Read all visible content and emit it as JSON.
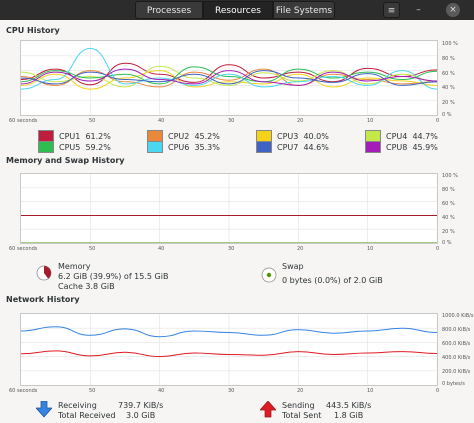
{
  "tabs": [
    {
      "label": "Processes"
    },
    {
      "label": "Resources"
    },
    {
      "label": "File Systems"
    }
  ],
  "header": {
    "menu_glyph": "≡",
    "minimize_glyph": "–",
    "close_glyph": "×"
  },
  "cpu": {
    "title": "CPU History",
    "x_ticks": [
      "60 seconds",
      "50",
      "40",
      "30",
      "20",
      "10",
      "0"
    ],
    "y_ticks": [
      "100 %",
      "80 %",
      "60 %",
      "40 %",
      "20 %",
      "0 %"
    ],
    "cpus": [
      {
        "label": "CPU1",
        "value": "61.2%",
        "color": "#c01c3b"
      },
      {
        "label": "CPU2",
        "value": "45.2%",
        "color": "#e8883a"
      },
      {
        "label": "CPU3",
        "value": "40.0%",
        "color": "#f5d21a"
      },
      {
        "label": "CPU4",
        "value": "44.7%",
        "color": "#c3e84a"
      },
      {
        "label": "CPU5",
        "value": "59.2%",
        "color": "#2ebd4f"
      },
      {
        "label": "CPU6",
        "value": "35.3%",
        "color": "#4ad7f0"
      },
      {
        "label": "CPU7",
        "value": "44.6%",
        "color": "#3f63c4"
      },
      {
        "label": "CPU8",
        "value": "45.9%",
        "color": "#a51db9"
      }
    ]
  },
  "memory": {
    "title": "Memory and Swap History",
    "x_ticks": [
      "60 seconds",
      "50",
      "40",
      "30",
      "20",
      "10",
      "0"
    ],
    "y_ticks": [
      "100 %",
      "80 %",
      "60 %",
      "40 %",
      "20 %",
      "0 %"
    ],
    "memory_label": "Memory",
    "memory_value": "6.2 GiB (39.9%) of 15.5 GiB",
    "cache_value": "Cache 3.8 GiB",
    "memory_fraction": 0.399,
    "memory_color": "#a51d2d",
    "swap_label": "Swap",
    "swap_value": "0 bytes (0.0%) of 2.0 GiB",
    "swap_fraction": 0.0,
    "swap_color": "#4e9a06"
  },
  "network": {
    "title": "Network History",
    "x_ticks": [
      "60 seconds",
      "50",
      "40",
      "30",
      "20",
      "10",
      "0"
    ],
    "y_ticks": [
      "1000.0 KiB/s",
      "800.0 KiB/s",
      "600.0 KiB/s",
      "400.0 KiB/s",
      "200.0 KiB/s",
      "0 bytes/s"
    ],
    "receiving_label": "Receiving",
    "receiving_value": "739.7 KiB/s",
    "total_received_label": "Total Received",
    "total_received_value": "3.0 GiB",
    "sending_label": "Sending",
    "sending_value": "443.5 KiB/s",
    "total_sent_label": "Total Sent",
    "total_sent_value": "1.8 GiB",
    "receiving_color": "#3584e4",
    "sending_color": "#e01b24"
  },
  "chart_data": [
    {
      "type": "line",
      "ylim": [
        0,
        100
      ],
      "x": [
        60,
        55,
        50,
        45,
        40,
        35,
        30,
        25,
        20,
        15,
        10,
        5,
        0
      ],
      "series": [
        {
          "name": "CPU1",
          "values": [
            48,
            62,
            41,
            70,
            55,
            44,
            68,
            50,
            58,
            45,
            63,
            52,
            61
          ]
        },
        {
          "name": "CPU2",
          "values": [
            52,
            40,
            60,
            45,
            38,
            58,
            47,
            62,
            40,
            55,
            48,
            42,
            45
          ]
        },
        {
          "name": "CPU3",
          "values": [
            40,
            55,
            35,
            50,
            60,
            38,
            45,
            42,
            55,
            38,
            50,
            46,
            40
          ]
        },
        {
          "name": "CPU4",
          "values": [
            58,
            45,
            52,
            38,
            66,
            50,
            40,
            57,
            46,
            60,
            42,
            55,
            45
          ]
        },
        {
          "name": "CPU5",
          "values": [
            45,
            60,
            50,
            55,
            42,
            65,
            52,
            45,
            62,
            50,
            58,
            48,
            59
          ]
        },
        {
          "name": "CPU6",
          "values": [
            35,
            48,
            90,
            42,
            50,
            40,
            55,
            38,
            45,
            52,
            40,
            60,
            35
          ]
        },
        {
          "name": "CPU7",
          "values": [
            50,
            42,
            58,
            48,
            45,
            55,
            42,
            60,
            50,
            44,
            56,
            40,
            45
          ]
        },
        {
          "name": "CPU8",
          "values": [
            42,
            58,
            46,
            62,
            48,
            42,
            60,
            45,
            40,
            58,
            46,
            52,
            46
          ]
        }
      ]
    },
    {
      "type": "line",
      "ylim": [
        0,
        100
      ],
      "x": [
        60,
        0
      ],
      "series": [
        {
          "name": "Memory",
          "values": [
            39.9,
            39.9
          ]
        },
        {
          "name": "Swap",
          "values": [
            0,
            0
          ]
        }
      ]
    },
    {
      "type": "line",
      "ylim": [
        0,
        1000
      ],
      "x": [
        60,
        55,
        50,
        45,
        40,
        35,
        30,
        25,
        20,
        15,
        10,
        5,
        0
      ],
      "series": [
        {
          "name": "Receiving",
          "values": [
            760,
            820,
            700,
            790,
            680,
            760,
            740,
            700,
            780,
            730,
            760,
            800,
            740
          ]
        },
        {
          "name": "Sending",
          "values": [
            440,
            480,
            410,
            460,
            400,
            450,
            430,
            420,
            470,
            430,
            450,
            470,
            443
          ]
        }
      ]
    }
  ]
}
